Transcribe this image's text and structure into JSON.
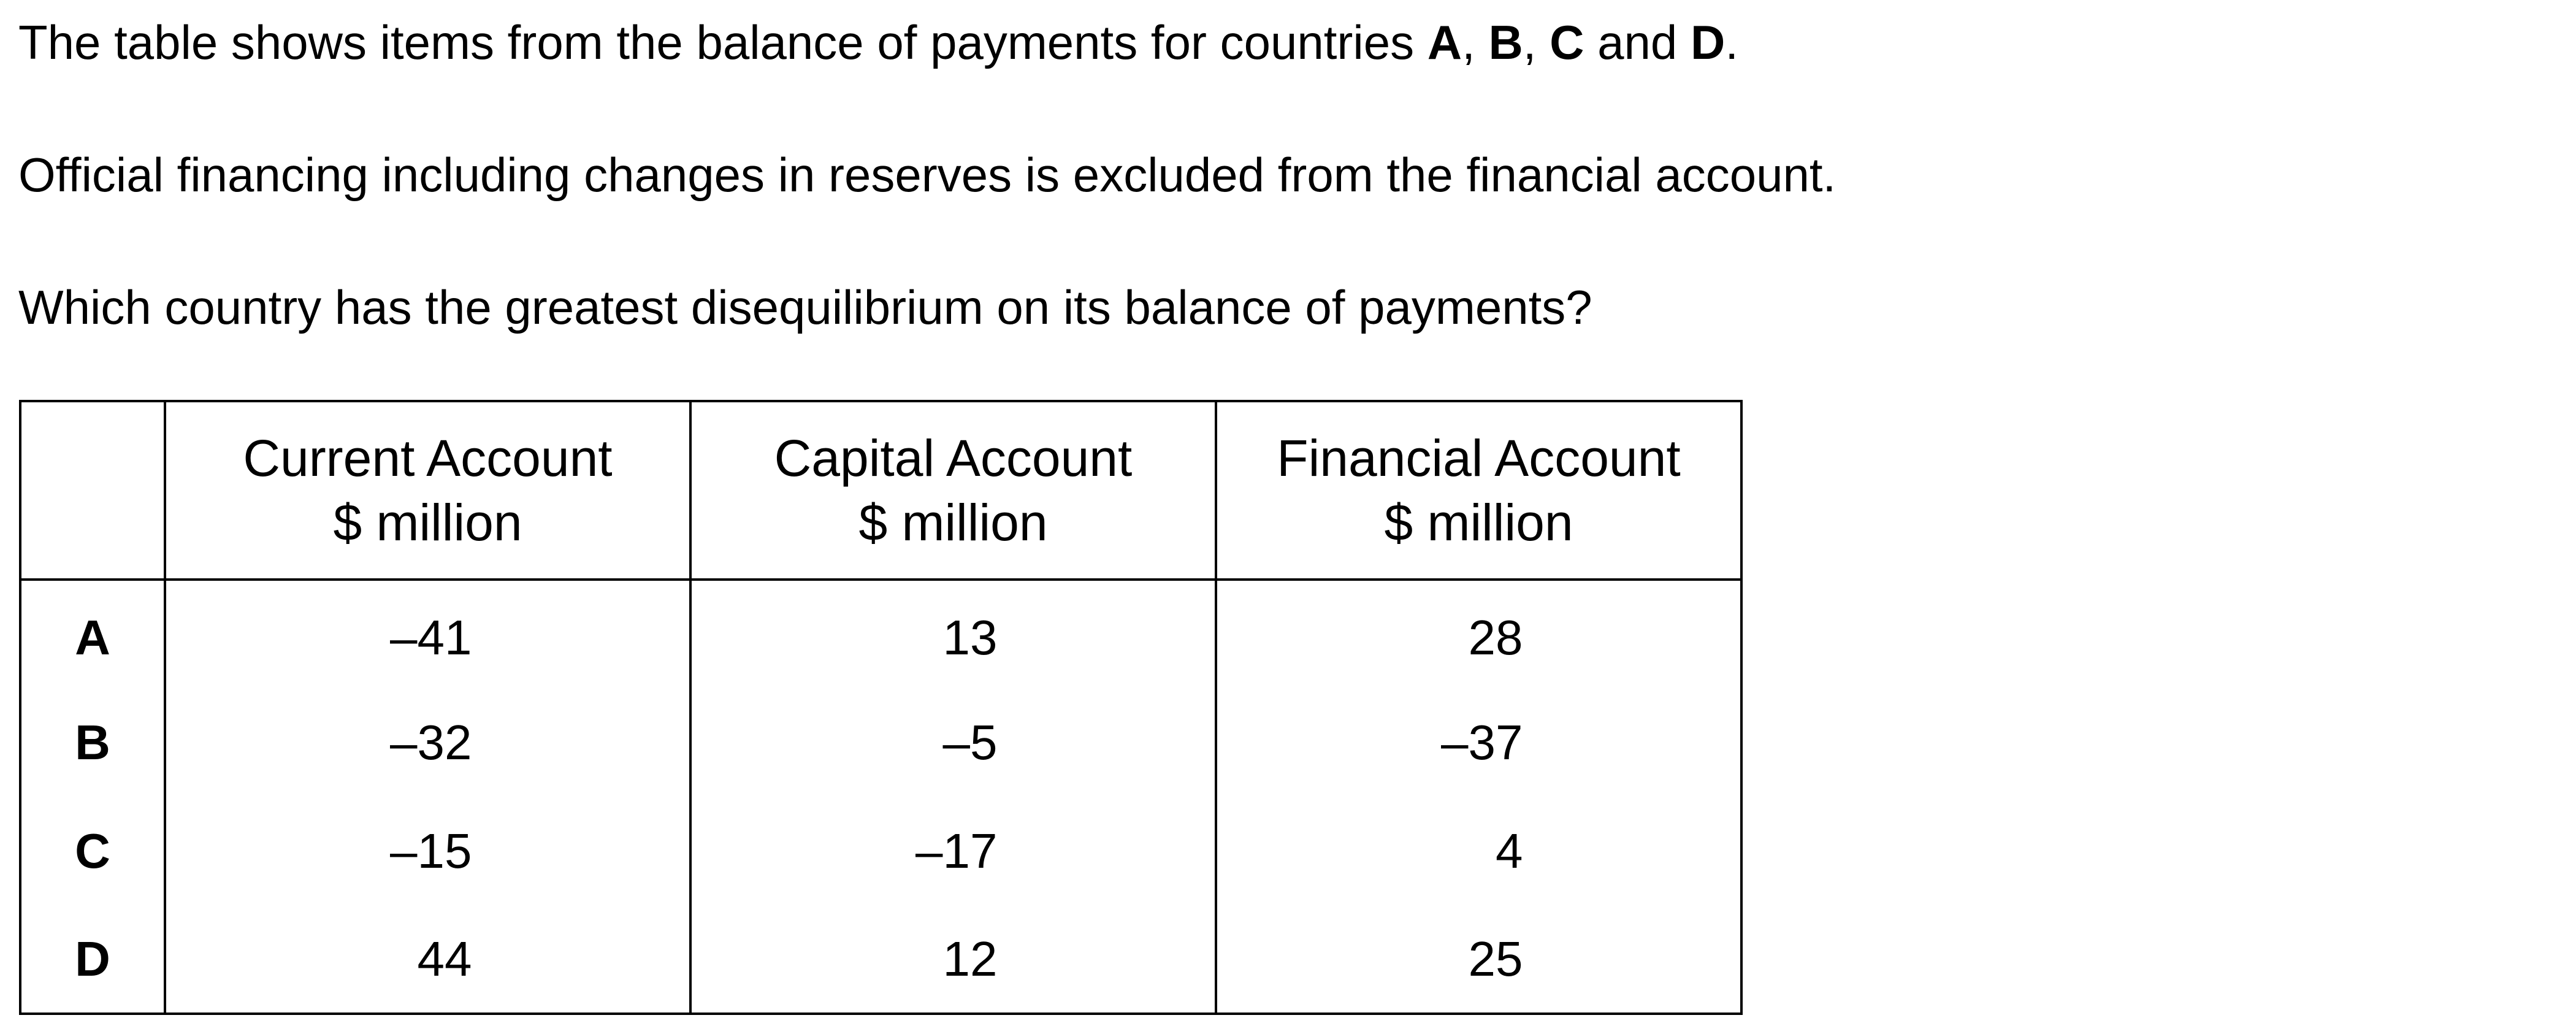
{
  "question": {
    "line1": {
      "text_before": "The table shows items from the balance of payments for countries ",
      "bold_a": "A",
      "sep1": ", ",
      "bold_b": "B",
      "sep2": ", ",
      "bold_c": "C",
      "sep3": " and ",
      "bold_d": "D",
      "text_after": "."
    },
    "line2": "Official financing including changes in reserves is excluded from the financial account.",
    "line3": "Which country has the greatest disequilibrium on its balance of payments?"
  },
  "table": {
    "headers": [
      {
        "line1": "Current Account",
        "line2": "$ million"
      },
      {
        "line1": "Capital Account",
        "line2": "$ million"
      },
      {
        "line1": "Financial Account",
        "line2": "$ million"
      }
    ],
    "rows": [
      {
        "label": "A",
        "current": "–41",
        "capital": "13",
        "financial": "28"
      },
      {
        "label": "B",
        "current": "–32",
        "capital": "–5",
        "financial": "–37"
      },
      {
        "label": "C",
        "current": "–15",
        "capital": "–17",
        "financial": "4"
      },
      {
        "label": "D",
        "current": "44",
        "capital": "12",
        "financial": "25"
      }
    ]
  }
}
